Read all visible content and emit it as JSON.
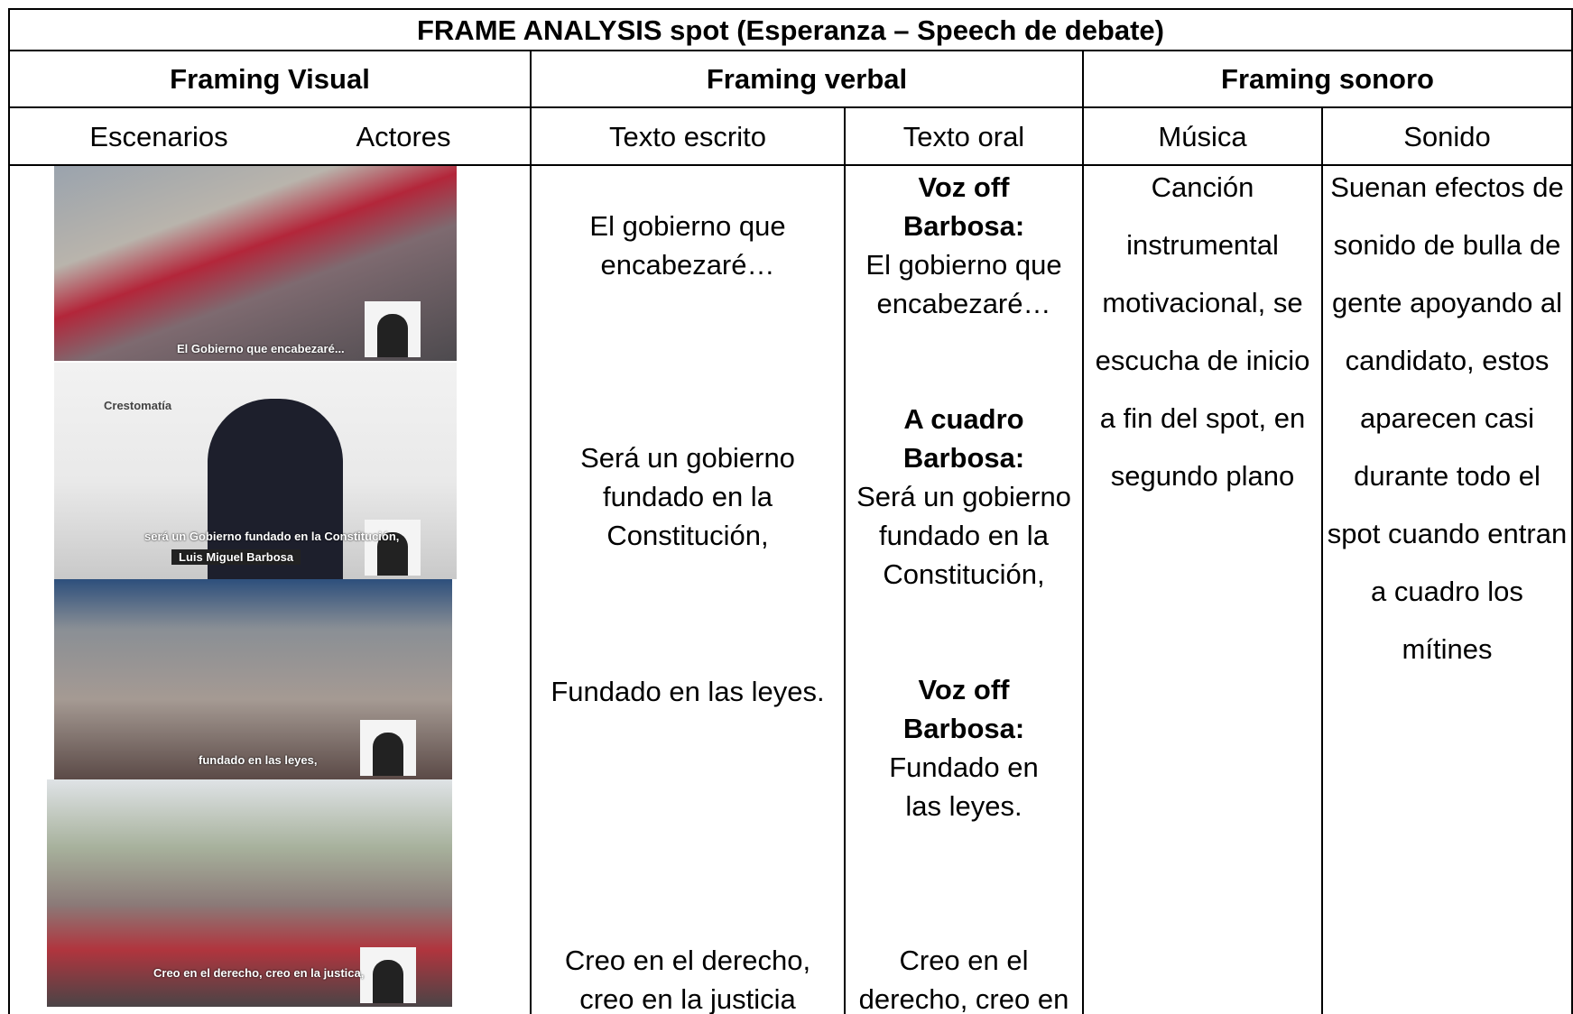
{
  "title": "FRAME ANALYSIS spot (Esperanza – Speech de debate)",
  "header": [
    "Framing Visual",
    "Framing verbal",
    "Framing sonoro"
  ],
  "subheader": [
    "Escenarios",
    "Actores",
    "Texto escrito",
    "Texto oral",
    "Música",
    "Sonido"
  ],
  "images": [
    {
      "captions": [
        "El Gobierno que encabezaré..."
      ]
    },
    {
      "captions": [
        "Crestomatía",
        "será un Gobierno fundado en la Constitución,",
        "Luis Miguel Barbosa"
      ]
    },
    {
      "captions": [
        "fundado en las leyes,"
      ]
    },
    {
      "captions": [
        "Creo en el derecho, creo en la justica,"
      ]
    }
  ],
  "texto_escrito": [
    "El gobierno que encabezaré…",
    "Será un gobierno fundado en la Constitución,",
    "Fundado en las leyes.",
    "Creo en el derecho, creo en la justicia"
  ],
  "texto_oral": [
    {
      "speaker": "Voz off Barbosa:",
      "text": "El gobierno que encabezaré…"
    },
    {
      "speaker": "A cuadro Barbosa:",
      "text": "Será un gobierno fundado en la Constitución,"
    },
    {
      "speaker": "Voz off Barbosa:",
      "text": "Fundado en las leyes."
    },
    {
      "speaker": "",
      "text": "Creo en el derecho, creo en"
    }
  ],
  "musica": "Canción instrumental motivacional, se escucha de inicio a fin del spot, en segundo plano",
  "sonido": "Suenan efectos de sonido de bulla de gente apoyando al candidato, estos aparecen casi durante todo el spot cuando entran a cuadro los mítines"
}
